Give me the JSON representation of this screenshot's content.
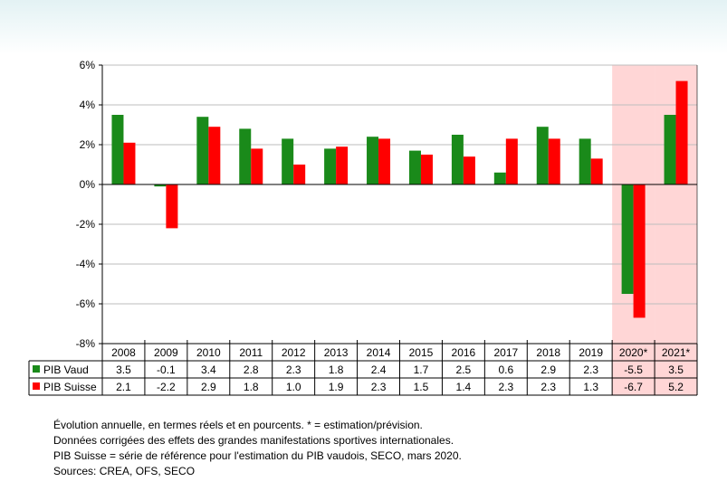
{
  "chart_data": {
    "type": "bar",
    "categories": [
      "2008",
      "2009",
      "2010",
      "2011",
      "2012",
      "2013",
      "2014",
      "2015",
      "2016",
      "2017",
      "2018",
      "2019",
      "2020*",
      "2021*"
    ],
    "series": [
      {
        "name": "PIB Vaud",
        "color": "#1a8a1a",
        "values": [
          3.5,
          -0.1,
          3.4,
          2.8,
          2.3,
          1.8,
          2.4,
          1.7,
          2.5,
          0.6,
          2.9,
          2.3,
          -5.5,
          3.5
        ],
        "labels": [
          "3.5",
          "-0.1",
          "3.4",
          "2.8",
          "2.3",
          "1.8",
          "2.4",
          "1.7",
          "2.5",
          "0.6",
          "2.9",
          "2.3",
          "-5.5",
          "3.5"
        ]
      },
      {
        "name": "PIB Suisse",
        "color": "#ff0000",
        "values": [
          2.1,
          -2.2,
          2.9,
          1.8,
          1.0,
          1.9,
          2.3,
          1.5,
          1.4,
          2.3,
          2.3,
          1.3,
          -6.7,
          5.2
        ],
        "labels": [
          "2.1",
          "-2.2",
          "2.9",
          "1.8",
          "1.0",
          "1.9",
          "2.3",
          "1.5",
          "1.4",
          "2.3",
          "2.3",
          "1.3",
          "-6.7",
          "5.2"
        ]
      }
    ],
    "ylim": [
      -8,
      6
    ],
    "yticks": [
      6,
      4,
      2,
      0,
      -2,
      -4,
      -6,
      -8
    ],
    "ytick_labels": [
      "6%",
      "4%",
      "2%",
      "0%",
      "-2%",
      "-4%",
      "-6%",
      "-8%"
    ],
    "highlight_categories": [
      "2020*",
      "2021*"
    ],
    "highlight_color": "#ffd6d6",
    "grid": true,
    "data_table": true
  },
  "notes": [
    "Évolution annuelle, en termes réels et en pourcents. * = estimation/prévision.",
    "Données corrigées des effets des grandes manifestations sportives internationales.",
    "PIB Suisse = série de référence pour l'estimation du PIB vaudois, SECO, mars 2020.",
    "Sources: CREA, OFS, SECO"
  ]
}
